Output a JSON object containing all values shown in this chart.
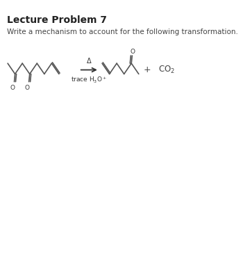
{
  "title": "Lecture Problem 7",
  "subtitle": "Write a mechanism to account for the following transformation.",
  "bg_color": "#ffffff",
  "text_color": "#333333",
  "line_color": "#555555",
  "title_fontsize": 10,
  "subtitle_fontsize": 7.5,
  "arrow_label_top": "Δ",
  "arrow_label_bottom": "trace H₃O⁺",
  "plus_sign": "+",
  "co2_label": "CO₂",
  "fig_width": 3.5,
  "fig_height": 4.03,
  "dpi": 100
}
